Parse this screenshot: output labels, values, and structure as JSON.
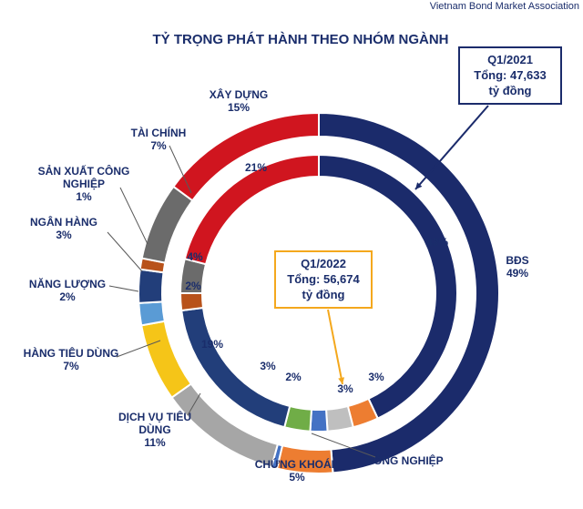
{
  "header": {
    "source": "Vietnam Bond Market Association"
  },
  "chart_data": {
    "type": "donut",
    "title": "TỶ TRỌNG PHÁT HÀNH THEO NHÓM NGÀNH",
    "colors": {
      "BĐS": "#1b2b6b",
      "XÂY DỰNG": "#d0151f",
      "TÀI CHÍNH": "#6b6b6b",
      "SẢN XUẤT CÔNG NGHIỆP": "#b8521a",
      "NGÂN HÀNG": "#223e7a",
      "NĂNG LƯỢNG": "#5a9bd5",
      "HÀNG TIÊU DÙNG": "#f5c518",
      "DỊCH VỤ TIÊU DÙNG": "#a6a6a6",
      "CHỨNG KHOÁN": "#ed7d31",
      "NÔNG NGHIỆP": "#4472c4",
      "GREEN": "#70ad47",
      "LIGHT_GREY": "#bfbfbf"
    },
    "outer_ring": {
      "name": "Q1/2021",
      "callout": {
        "period": "Q1/2021",
        "total_label": "Tổng: 47,633",
        "unit": "tỷ đồng"
      },
      "slices": [
        {
          "label": "BĐS",
          "value": 49,
          "display": "49%",
          "color_key": "BĐS"
        },
        {
          "label": "CHỨNG KHOÁN",
          "value": 5,
          "display": "5%",
          "color_key": "CHỨNG KHOÁN"
        },
        {
          "label": "NÔNG NGHIỆP",
          "value": 0.5,
          "display": "",
          "color_key": "NÔNG NGHIỆP"
        },
        {
          "label": "DỊCH VỤ TIÊU DÙNG",
          "value": 11,
          "display": "11%",
          "color_key": "DỊCH VỤ TIÊU DÙNG"
        },
        {
          "label": "HÀNG TIÊU DÙNG",
          "value": 7,
          "display": "7%",
          "color_key": "HÀNG TIÊU DÙNG"
        },
        {
          "label": "NĂNG LƯỢNG",
          "value": 2,
          "display": "2%",
          "color_key": "NĂNG LƯỢNG"
        },
        {
          "label": "NGÂN HÀNG",
          "value": 3,
          "display": "3%",
          "color_key": "NGÂN HÀNG"
        },
        {
          "label": "SẢN XUẤT CÔNG NGHIỆP",
          "value": 1,
          "display": "1%",
          "color_key": "SẢN XUẤT CÔNG NGHIỆP"
        },
        {
          "label": "TÀI CHÍNH",
          "value": 7,
          "display": "7%",
          "color_key": "TÀI CHÍNH"
        },
        {
          "label": "XÂY DỰNG",
          "value": 15,
          "display": "15%",
          "color_key": "XÂY DỰNG"
        }
      ]
    },
    "inner_ring": {
      "name": "Q1/2022",
      "callout": {
        "period": "Q1/2022",
        "total_label": "Tổng: 56,674",
        "unit": "tỷ đồng"
      },
      "slices": [
        {
          "value": 43,
          "display": "43%",
          "color_key": "BĐS"
        },
        {
          "value": 3,
          "display": "3%",
          "color_key": "CHỨNG KHOÁN"
        },
        {
          "value": 3,
          "display": "3%",
          "color_key": "LIGHT_GREY"
        },
        {
          "value": 2,
          "display": "2%",
          "color_key": "NÔNG NGHIỆP"
        },
        {
          "value": 3,
          "display": "3%",
          "color_key": "GREEN"
        },
        {
          "value": 19,
          "display": "19%",
          "color_key": "NGÂN HÀNG"
        },
        {
          "value": 2,
          "display": "2%",
          "color_key": "SẢN XUẤT CÔNG NGHIỆP"
        },
        {
          "value": 4,
          "display": "4%",
          "color_key": "TÀI CHÍNH"
        },
        {
          "value": 21,
          "display": "21%",
          "color_key": "XÂY DỰNG"
        }
      ]
    }
  }
}
